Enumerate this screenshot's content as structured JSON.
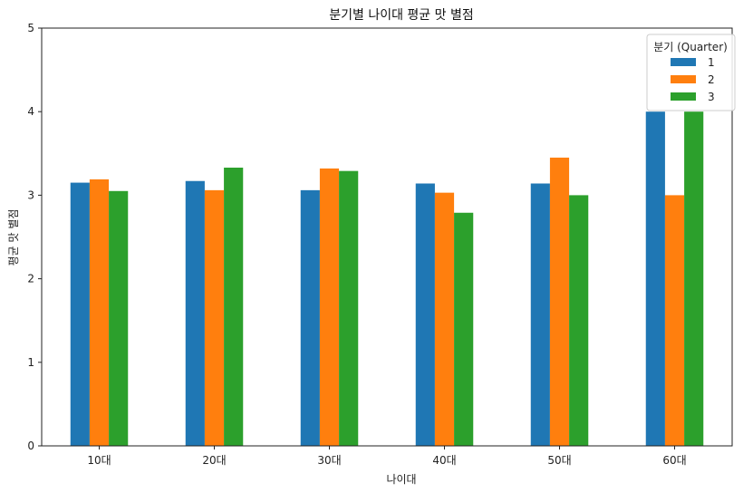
{
  "chart_data": {
    "type": "bar",
    "title": "분기별 나이대 평균 맛 별점",
    "xlabel": "나이대",
    "ylabel": "평균 맛 별점",
    "categories": [
      "10대",
      "20대",
      "30대",
      "40대",
      "50대",
      "60대"
    ],
    "series": [
      {
        "name": "1",
        "color": "#1f77b4",
        "values": [
          3.15,
          3.17,
          3.06,
          3.14,
          3.14,
          4.0
        ]
      },
      {
        "name": "2",
        "color": "#ff7f0e",
        "values": [
          3.19,
          3.06,
          3.32,
          3.03,
          3.45,
          3.0
        ]
      },
      {
        "name": "3",
        "color": "#2ca02c",
        "values": [
          3.05,
          3.33,
          3.29,
          2.79,
          3.0,
          4.0
        ]
      }
    ],
    "ylim": [
      0,
      5
    ],
    "yticks": [
      "0",
      "1",
      "2",
      "3",
      "4",
      "5"
    ],
    "legend": {
      "title": "분기 (Quarter)",
      "position": "top-right"
    },
    "grid": false
  }
}
